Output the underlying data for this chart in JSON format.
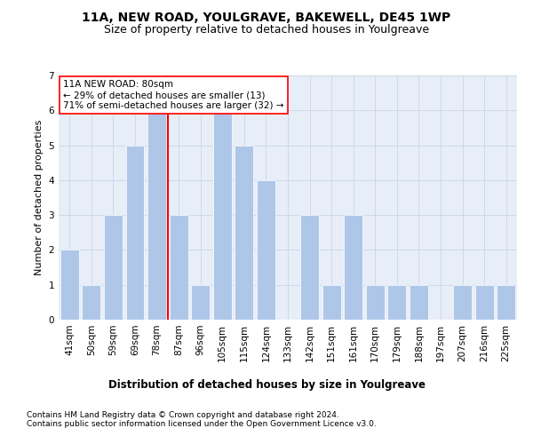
{
  "title": "11A, NEW ROAD, YOULGRAVE, BAKEWELL, DE45 1WP",
  "subtitle": "Size of property relative to detached houses in Youlgreave",
  "xlabel": "Distribution of detached houses by size in Youlgreave",
  "ylabel": "Number of detached properties",
  "categories": [
    "41sqm",
    "50sqm",
    "59sqm",
    "69sqm",
    "78sqm",
    "87sqm",
    "96sqm",
    "105sqm",
    "115sqm",
    "124sqm",
    "133sqm",
    "142sqm",
    "151sqm",
    "161sqm",
    "170sqm",
    "179sqm",
    "188sqm",
    "197sqm",
    "207sqm",
    "216sqm",
    "225sqm"
  ],
  "values": [
    2,
    1,
    3,
    5,
    6,
    3,
    1,
    6,
    5,
    4,
    0,
    3,
    1,
    3,
    1,
    1,
    1,
    0,
    1,
    1,
    1
  ],
  "bar_color": "#aec6e8",
  "vline_color": "red",
  "vline_index": 4.5,
  "annotation_text": "11A NEW ROAD: 80sqm\n← 29% of detached houses are smaller (13)\n71% of semi-detached houses are larger (32) →",
  "annotation_box_color": "white",
  "annotation_box_edge": "red",
  "annotation_fontsize": 7.5,
  "ylim": [
    0,
    7
  ],
  "yticks": [
    0,
    1,
    2,
    3,
    4,
    5,
    6,
    7
  ],
  "title_fontsize": 10,
  "subtitle_fontsize": 9,
  "xlabel_fontsize": 8.5,
  "ylabel_fontsize": 8,
  "tick_fontsize": 7.5,
  "footer_text": "Contains HM Land Registry data © Crown copyright and database right 2024.\nContains public sector information licensed under the Open Government Licence v3.0.",
  "footer_fontsize": 6.5,
  "grid_color": "#d0d8e8",
  "background_color": "#e8eef8"
}
